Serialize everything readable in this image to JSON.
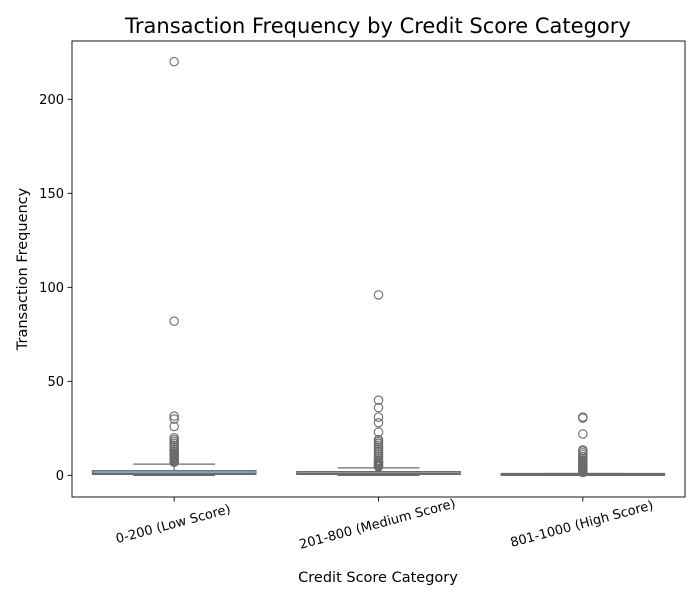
{
  "chart_data": {
    "type": "box",
    "title": "Transaction Frequency by Credit Score Category",
    "xlabel": "Credit Score Category",
    "ylabel": "Transaction Frequency",
    "ylim": [
      -11.5,
      231
    ],
    "yticks": [
      0,
      50,
      100,
      150,
      200
    ],
    "grid": false,
    "legend": "none",
    "categories": [
      "0-200 (Low Score)",
      "201-800 (Medium Score)",
      "801-1000 (High Score)"
    ],
    "boxes": [
      {
        "category": "0-200 (Low Score)",
        "fill": "#8fa9dc",
        "whisker_low": 0,
        "q1": 0.5,
        "median": 1,
        "q3": 2.5,
        "whisker_high": 6,
        "outliers": [
          7,
          7.5,
          8,
          8.5,
          9,
          9.5,
          10,
          10.5,
          11,
          11.5,
          12,
          13,
          14,
          15,
          16,
          17,
          18,
          19,
          20,
          26,
          30,
          31.5,
          82,
          220
        ]
      },
      {
        "category": "201-800 (Medium Score)",
        "fill": "#a8a8a8",
        "whisker_low": 0,
        "q1": 0.5,
        "median": 1,
        "q3": 2,
        "whisker_high": 4,
        "outliers": [
          4.5,
          5,
          5.5,
          6,
          6.5,
          7,
          7.5,
          8,
          9,
          10,
          11,
          12,
          13,
          14,
          15,
          16,
          17,
          18,
          19,
          23,
          28,
          31,
          36,
          40,
          96
        ]
      },
      {
        "category": "801-1000 (High Score)",
        "fill": "#a8a8a8",
        "whisker_low": 0,
        "q1": 0,
        "median": 0.5,
        "q3": 1,
        "whisker_high": 1,
        "outliers": [
          1.5,
          2,
          2.5,
          3,
          3.5,
          4,
          4.5,
          5,
          5.5,
          6,
          6.5,
          7,
          7.5,
          8,
          9,
          10,
          11,
          12,
          13,
          13.5,
          22,
          30.5,
          31
        ]
      }
    ]
  }
}
